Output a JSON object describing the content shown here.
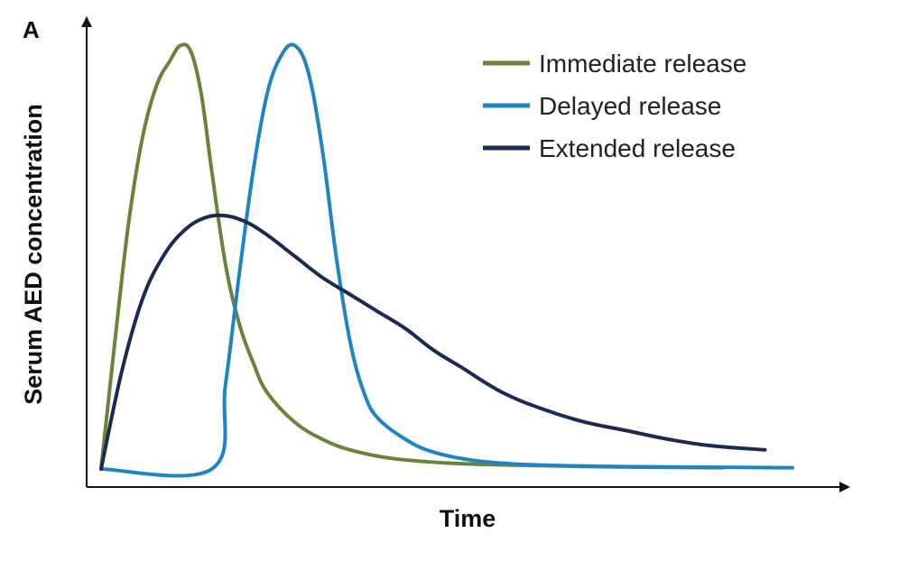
{
  "chart_data": {
    "type": "line",
    "panel_label": "A",
    "xlabel": "Time",
    "ylabel": "Serum AED concentration",
    "xlim": [
      0,
      100
    ],
    "ylim": [
      0,
      100
    ],
    "grid": false,
    "legend_position": "top-right",
    "series": [
      {
        "name": "Immediate release",
        "color": "#6a833b",
        "points": [
          [
            0,
            0
          ],
          [
            2,
            30
          ],
          [
            4,
            58
          ],
          [
            6,
            78
          ],
          [
            8,
            90
          ],
          [
            10,
            96
          ],
          [
            11.5,
            99.5
          ],
          [
            13,
            98
          ],
          [
            14.5,
            88
          ],
          [
            16,
            70
          ],
          [
            18,
            48
          ],
          [
            20,
            34
          ],
          [
            22,
            25
          ],
          [
            24,
            18
          ],
          [
            28,
            11
          ],
          [
            32,
            7
          ],
          [
            36,
            4.5
          ],
          [
            42,
            2.5
          ],
          [
            50,
            1.4
          ],
          [
            60,
            0.9
          ],
          [
            70,
            0.6
          ],
          [
            80,
            0.4
          ],
          [
            90,
            0.3
          ]
        ]
      },
      {
        "name": "Delayed release",
        "color": "#1f85c2",
        "points": [
          [
            0,
            0
          ],
          [
            16,
            0
          ],
          [
            18,
            20
          ],
          [
            20,
            46
          ],
          [
            22,
            70
          ],
          [
            24,
            88
          ],
          [
            26,
            97
          ],
          [
            28,
            99.5
          ],
          [
            30,
            93
          ],
          [
            32,
            75
          ],
          [
            34,
            50
          ],
          [
            36,
            30
          ],
          [
            38,
            18
          ],
          [
            40,
            12
          ],
          [
            44,
            7
          ],
          [
            48,
            4
          ],
          [
            54,
            2
          ],
          [
            62,
            1
          ],
          [
            75,
            0.6
          ],
          [
            90,
            0.4
          ],
          [
            100,
            0.3
          ]
        ]
      },
      {
        "name": "Extended release",
        "color": "#1a2a52",
        "points": [
          [
            0,
            0
          ],
          [
            3,
            23
          ],
          [
            6,
            40
          ],
          [
            9,
            50
          ],
          [
            12,
            56
          ],
          [
            15,
            59
          ],
          [
            18,
            59.5
          ],
          [
            21,
            58
          ],
          [
            24,
            55
          ],
          [
            28,
            50
          ],
          [
            32,
            45
          ],
          [
            36,
            41
          ],
          [
            40,
            37
          ],
          [
            44,
            33
          ],
          [
            48,
            28
          ],
          [
            52,
            24
          ],
          [
            58,
            18
          ],
          [
            64,
            14
          ],
          [
            70,
            11
          ],
          [
            76,
            9
          ],
          [
            82,
            7
          ],
          [
            88,
            5.5
          ],
          [
            96,
            4.5
          ]
        ]
      }
    ]
  }
}
